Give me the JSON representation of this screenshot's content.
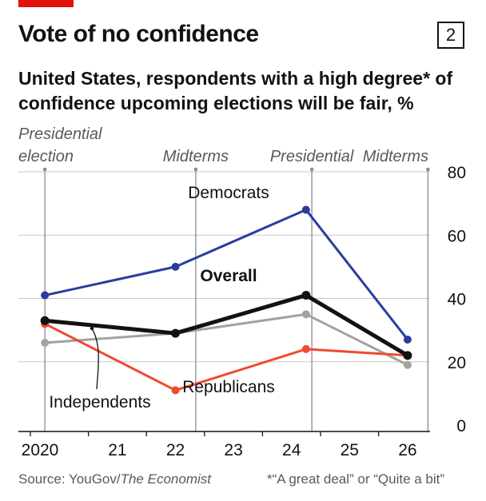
{
  "header": {
    "title": "Vote of no confidence",
    "chart_number": "2",
    "subtitle": "United States, respondents with a high degree* of confidence upcoming elections will be fair, %"
  },
  "footer": {
    "source_prefix": "Source: YouGov/",
    "source_publication": "The Economist",
    "footnote": "*“A great deal” or “Quite a bit”"
  },
  "colors": {
    "democrats": "#2a3d9e",
    "republicans": "#ef4a2f",
    "independents": "#a3a39d",
    "overall": "#121212",
    "gridline": "#c8c8c8",
    "event_line": "#8c8c8c",
    "accent_red": "#e3120b"
  },
  "chart_data": {
    "type": "line",
    "title": "Vote of no confidence",
    "ylim": [
      0,
      80
    ],
    "y_ticks": [
      0,
      20,
      40,
      60,
      80
    ],
    "y_axis_side": "right",
    "x_ticks": [
      {
        "label": "2020",
        "year": 2020
      },
      {
        "label": "21",
        "year": 2021
      },
      {
        "label": "22",
        "year": 2022
      },
      {
        "label": "23",
        "year": 2023
      },
      {
        "label": "24",
        "year": 2024
      },
      {
        "label": "25",
        "year": 2025
      },
      {
        "label": "26",
        "year": 2026
      }
    ],
    "xlim": [
      2020.0,
      2026.8
    ],
    "events": [
      {
        "label_lines": [
          "Presidential",
          "election"
        ],
        "x": 2020.25
      },
      {
        "label_lines": [
          "Midterms"
        ],
        "x": 2022.85
      },
      {
        "label_lines": [
          "Presidential"
        ],
        "x": 2024.85
      },
      {
        "label_lines": [
          "Midterms"
        ],
        "x": 2026.85
      }
    ],
    "series": [
      {
        "name": "Democrats",
        "color_key": "democrats",
        "markers": true,
        "x": [
          2020.25,
          2022.5,
          2024.75,
          2026.5
        ],
        "y": [
          41,
          50,
          68,
          27
        ]
      },
      {
        "name": "Republicans",
        "color_key": "republicans",
        "markers": true,
        "x": [
          2020.25,
          2022.5,
          2024.75,
          2026.5
        ],
        "y": [
          32,
          11,
          24,
          22
        ]
      },
      {
        "name": "Independents",
        "color_key": "independents",
        "markers": true,
        "x": [
          2020.25,
          2022.5,
          2024.75,
          2026.5
        ],
        "y": [
          26,
          29,
          35,
          19
        ]
      },
      {
        "name": "Overall",
        "color_key": "overall",
        "markers": true,
        "x": [
          2020.25,
          2022.5,
          2024.75,
          2026.5
        ],
        "y": [
          33,
          29,
          41,
          22
        ]
      }
    ],
    "annotations": [
      {
        "text": "Democrats",
        "series": "Democrats"
      },
      {
        "text": "Overall",
        "series": "Overall",
        "bold": true
      },
      {
        "text": "Republicans",
        "series": "Republicans"
      },
      {
        "text": "Independents",
        "series": "Independents"
      }
    ]
  }
}
